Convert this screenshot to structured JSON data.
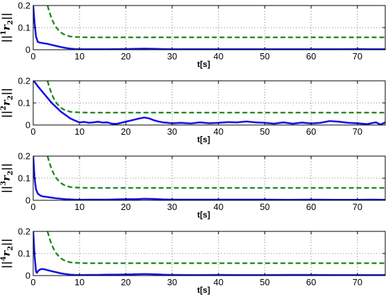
{
  "chart_data": [
    {
      "type": "line",
      "ylabel": {
        "prefix": "||",
        "sup": "1",
        "main": "r",
        "sub": "2",
        "suffix": "||"
      },
      "xlabel": "t[s]",
      "xlim": [
        0,
        76
      ],
      "ylim": [
        0,
        0.2
      ],
      "xticks": [
        0,
        10,
        20,
        30,
        40,
        50,
        60,
        70
      ],
      "yticks": [
        0,
        0.1,
        0.2
      ],
      "xtick_labels": [
        "0",
        "10",
        "20",
        "30",
        "40",
        "50",
        "60",
        "70"
      ],
      "ytick_labels": [
        "0",
        "0.1",
        "0.2"
      ],
      "grid": true,
      "series": [
        {
          "color": "#1515e6",
          "style": "solid",
          "x": [
            0,
            0.3,
            0.6,
            1,
            1.5,
            2,
            3,
            4,
            5,
            6,
            7,
            8,
            9,
            10,
            12,
            14,
            16,
            18,
            20,
            22,
            24,
            26,
            28,
            30,
            35,
            40,
            45,
            50,
            55,
            60,
            65,
            70,
            73,
            76
          ],
          "y": [
            0.2,
            0.12,
            0.06,
            0.035,
            0.032,
            0.03,
            0.027,
            0.022,
            0.017,
            0.012,
            0.008,
            0.005,
            0.003,
            0.002,
            0.002,
            0.002,
            0.002,
            0.003,
            0.003,
            0.004,
            0.005,
            0.004,
            0.003,
            0.002,
            0.002,
            0.002,
            0.002,
            0.002,
            0.002,
            0.002,
            0.002,
            0.003,
            0.002,
            0.002
          ]
        },
        {
          "color": "#1f8a1f",
          "style": "dashed",
          "x": [
            3.1,
            3.5,
            4,
            4.5,
            5,
            5.5,
            6,
            6.5,
            7,
            7.5,
            8,
            9,
            10,
            12,
            15,
            20,
            30,
            40,
            50,
            60,
            70,
            76
          ],
          "y": [
            0.2,
            0.17,
            0.14,
            0.117,
            0.1,
            0.088,
            0.078,
            0.071,
            0.066,
            0.063,
            0.06,
            0.058,
            0.057,
            0.056,
            0.056,
            0.056,
            0.056,
            0.056,
            0.056,
            0.056,
            0.056,
            0.056
          ]
        }
      ]
    },
    {
      "type": "line",
      "ylabel": {
        "prefix": "||",
        "sup": "2",
        "main": "r",
        "sub": "2",
        "suffix": "||"
      },
      "xlabel": "t[s]",
      "xlim": [
        0,
        76
      ],
      "ylim": [
        0,
        0.2
      ],
      "xticks": [
        0,
        10,
        20,
        30,
        40,
        50,
        60,
        70
      ],
      "yticks": [
        0,
        0.1,
        0.2
      ],
      "xtick_labels": [
        "0",
        "10",
        "20",
        "30",
        "40",
        "50",
        "60",
        "70"
      ],
      "ytick_labels": [
        "0",
        "0.1",
        "0.2"
      ],
      "grid": true,
      "series": [
        {
          "color": "#1515e6",
          "style": "solid",
          "x": [
            0,
            0.5,
            1,
            2,
            3,
            4,
            5,
            6,
            7,
            8,
            9,
            10,
            11,
            12,
            13,
            14,
            15,
            16,
            17,
            18,
            19,
            20,
            21,
            22,
            23,
            24,
            25,
            26,
            27,
            28,
            30,
            32,
            34,
            36,
            38,
            40,
            42,
            44,
            46,
            48,
            50,
            52,
            54,
            56,
            58,
            60,
            62,
            64,
            66,
            68,
            70,
            72,
            74,
            75,
            76
          ],
          "y": [
            0.2,
            0.19,
            0.175,
            0.15,
            0.125,
            0.1,
            0.08,
            0.06,
            0.045,
            0.03,
            0.02,
            0.012,
            0.014,
            0.01,
            0.012,
            0.015,
            0.011,
            0.012,
            0.006,
            0.005,
            0.01,
            0.015,
            0.02,
            0.025,
            0.03,
            0.034,
            0.03,
            0.022,
            0.016,
            0.012,
            0.008,
            0.01,
            0.007,
            0.012,
            0.008,
            0.01,
            0.013,
            0.012,
            0.016,
            0.012,
            0.01,
            0.006,
            0.012,
            0.006,
            0.011,
            0.007,
            0.01,
            0.018,
            0.015,
            0.01,
            0.008,
            0.004,
            0.012,
            0.002,
            0.012
          ]
        },
        {
          "color": "#1f8a1f",
          "style": "dashed",
          "x": [
            3.1,
            3.5,
            4,
            4.5,
            5,
            5.5,
            6,
            6.5,
            7,
            7.5,
            8,
            9,
            10,
            12,
            15,
            20,
            30,
            40,
            50,
            60,
            70,
            76
          ],
          "y": [
            0.2,
            0.17,
            0.14,
            0.117,
            0.1,
            0.088,
            0.078,
            0.071,
            0.066,
            0.063,
            0.06,
            0.058,
            0.057,
            0.056,
            0.056,
            0.056,
            0.056,
            0.056,
            0.056,
            0.056,
            0.056,
            0.056
          ]
        }
      ]
    },
    {
      "type": "line",
      "ylabel": {
        "prefix": "||",
        "sup": "3",
        "main": "r",
        "sub": "2",
        "suffix": "||"
      },
      "xlabel": "t[s]",
      "xlim": [
        0,
        76
      ],
      "ylim": [
        0,
        0.2
      ],
      "xticks": [
        0,
        10,
        20,
        30,
        40,
        50,
        60,
        70
      ],
      "yticks": [
        0,
        0.1,
        0.2
      ],
      "xtick_labels": [
        "0",
        "10",
        "20",
        "30",
        "40",
        "50",
        "60",
        "70"
      ],
      "ytick_labels": [
        "0",
        "0.1",
        "0.2"
      ],
      "grid": true,
      "series": [
        {
          "color": "#1515e6",
          "style": "solid",
          "x": [
            0,
            0.3,
            0.6,
            1,
            1.5,
            2,
            3,
            4,
            5,
            6,
            7,
            8,
            9,
            10,
            12,
            14,
            16,
            18,
            20,
            22,
            24,
            26,
            28,
            30,
            35,
            40,
            45,
            50,
            55,
            60,
            65,
            70,
            73,
            76
          ],
          "y": [
            0.2,
            0.1,
            0.05,
            0.03,
            0.022,
            0.018,
            0.015,
            0.012,
            0.009,
            0.007,
            0.005,
            0.004,
            0.003,
            0.002,
            0.003,
            0.003,
            0.003,
            0.004,
            0.005,
            0.005,
            0.007,
            0.006,
            0.004,
            0.003,
            0.003,
            0.003,
            0.003,
            0.003,
            0.002,
            0.003,
            0.002,
            0.002,
            0.003,
            0.002
          ]
        },
        {
          "color": "#1f8a1f",
          "style": "dashed",
          "x": [
            3.1,
            3.5,
            4,
            4.5,
            5,
            5.5,
            6,
            6.5,
            7,
            7.5,
            8,
            9,
            10,
            12,
            15,
            20,
            30,
            40,
            50,
            60,
            70,
            76
          ],
          "y": [
            0.2,
            0.17,
            0.14,
            0.117,
            0.1,
            0.088,
            0.078,
            0.071,
            0.066,
            0.063,
            0.06,
            0.058,
            0.057,
            0.056,
            0.056,
            0.056,
            0.056,
            0.056,
            0.056,
            0.056,
            0.056,
            0.056
          ]
        }
      ]
    },
    {
      "type": "line",
      "ylabel": {
        "prefix": "||",
        "sup": "4",
        "main": "r",
        "sub": "2",
        "suffix": "||"
      },
      "xlabel": "t[s]",
      "xlim": [
        0,
        76
      ],
      "ylim": [
        0,
        0.2
      ],
      "xticks": [
        0,
        10,
        20,
        30,
        40,
        50,
        60,
        70
      ],
      "yticks": [
        0,
        0.1,
        0.2
      ],
      "xtick_labels": [
        "0",
        "10",
        "20",
        "30",
        "40",
        "50",
        "60",
        "70"
      ],
      "ytick_labels": [
        "0",
        "0.1",
        "0.2"
      ],
      "grid": true,
      "series": [
        {
          "color": "#1515e6",
          "style": "solid",
          "x": [
            0,
            0.3,
            0.6,
            0.8,
            1,
            1.5,
            2,
            2.5,
            3,
            4,
            5,
            6,
            7,
            8,
            9,
            10,
            12,
            14,
            16,
            18,
            20,
            22,
            24,
            26,
            28,
            30,
            35,
            40,
            45,
            50,
            55,
            60,
            65,
            70,
            73,
            76
          ],
          "y": [
            0.2,
            0.09,
            0.02,
            0.012,
            0.02,
            0.028,
            0.03,
            0.028,
            0.025,
            0.02,
            0.015,
            0.01,
            0.007,
            0.004,
            0.003,
            0.002,
            0.003,
            0.003,
            0.004,
            0.004,
            0.005,
            0.006,
            0.007,
            0.006,
            0.004,
            0.003,
            0.002,
            0.003,
            0.002,
            0.002,
            0.003,
            0.003,
            0.002,
            0.002,
            0.002,
            0.002
          ]
        },
        {
          "color": "#1f8a1f",
          "style": "dashed",
          "x": [
            3.1,
            3.5,
            4,
            4.5,
            5,
            5.5,
            6,
            6.5,
            7,
            7.5,
            8,
            9,
            10,
            12,
            15,
            20,
            30,
            40,
            50,
            60,
            70,
            76
          ],
          "y": [
            0.2,
            0.17,
            0.14,
            0.117,
            0.1,
            0.088,
            0.078,
            0.071,
            0.066,
            0.063,
            0.06,
            0.058,
            0.057,
            0.056,
            0.056,
            0.056,
            0.056,
            0.056,
            0.056,
            0.056,
            0.056,
            0.056
          ]
        }
      ]
    }
  ]
}
